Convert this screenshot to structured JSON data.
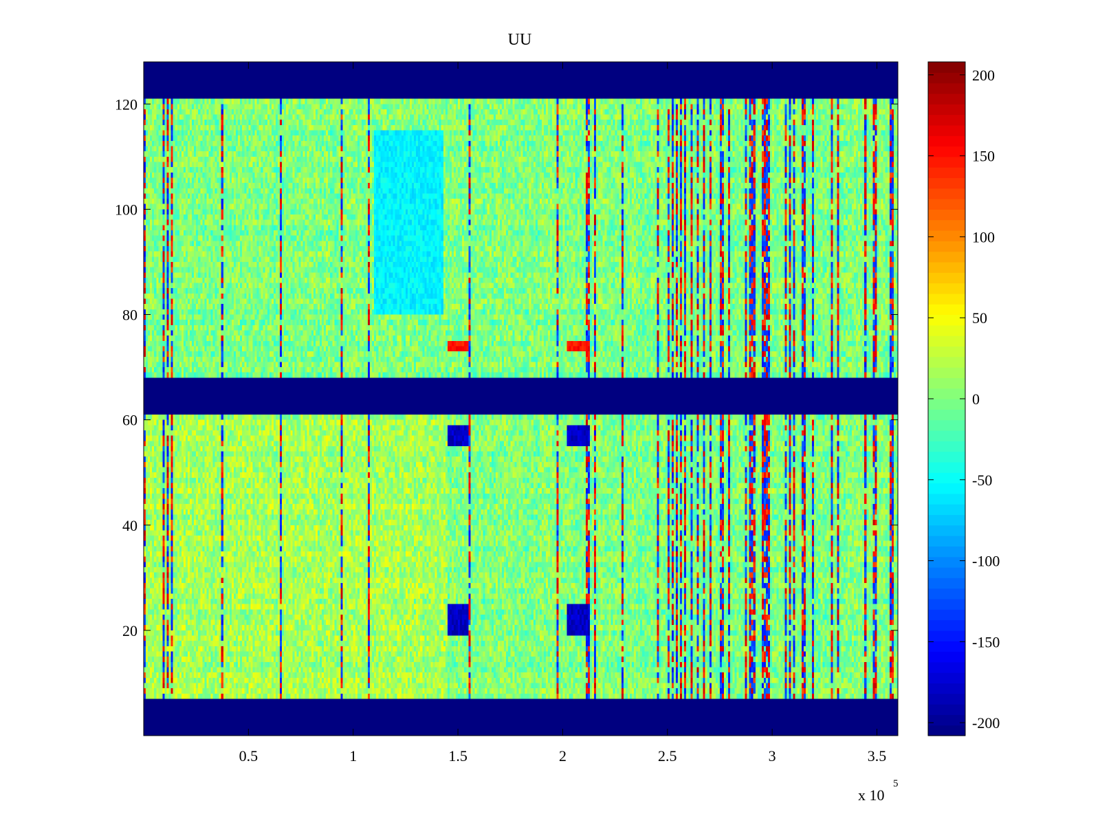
{
  "chart_data": {
    "type": "heatmap",
    "title": "UU",
    "xlabel": "",
    "ylabel": "",
    "x_exponent_label": "x 10",
    "x_exponent_power": "5",
    "xlim": [
      0,
      3.6
    ],
    "ylim": [
      0,
      128
    ],
    "x_ticks": [
      0.5,
      1,
      1.5,
      2,
      2.5,
      3,
      3.5
    ],
    "x_tick_labels": [
      "0.5",
      "1",
      "1.5",
      "2",
      "2.5",
      "3",
      "3.5"
    ],
    "y_ticks": [
      20,
      40,
      60,
      80,
      100,
      120
    ],
    "y_tick_labels": [
      "20",
      "40",
      "60",
      "80",
      "100",
      "120"
    ],
    "colorbar": {
      "colormap": "jet",
      "clim": [
        -208,
        208
      ],
      "ticks": [
        200,
        150,
        100,
        50,
        0,
        -50,
        -100,
        -150,
        -200
      ],
      "tick_labels": [
        "200",
        "150",
        "100",
        "50",
        "0",
        "-50",
        "-100",
        "-150",
        "-200"
      ]
    },
    "baseline_value": -208,
    "data_bands": [
      {
        "y_range": [
          7,
          61
        ],
        "typical_range": [
          -40,
          40
        ]
      },
      {
        "y_range": [
          68,
          121
        ],
        "typical_range": [
          -40,
          40
        ]
      }
    ],
    "features": [
      {
        "x_range": [
          1.45,
          1.55
        ],
        "y_range": [
          55,
          59
        ],
        "value": -180
      },
      {
        "x_range": [
          1.45,
          1.55
        ],
        "y_range": [
          19,
          25
        ],
        "value": -180
      },
      {
        "x_range": [
          2.02,
          2.13
        ],
        "y_range": [
          55,
          59
        ],
        "value": -180
      },
      {
        "x_range": [
          2.02,
          2.13
        ],
        "y_range": [
          19,
          25
        ],
        "value": -180
      },
      {
        "x_range": [
          1.45,
          1.55
        ],
        "y_range": [
          73,
          75
        ],
        "value": 150
      },
      {
        "x_range": [
          2.02,
          2.13
        ],
        "y_range": [
          73,
          75
        ],
        "value": 150
      },
      {
        "x_range": [
          1.1,
          1.43
        ],
        "y_range": [
          80,
          115
        ],
        "value": -55
      }
    ]
  },
  "colors": {
    "baseline": "#00007f",
    "axis": "#000000"
  }
}
